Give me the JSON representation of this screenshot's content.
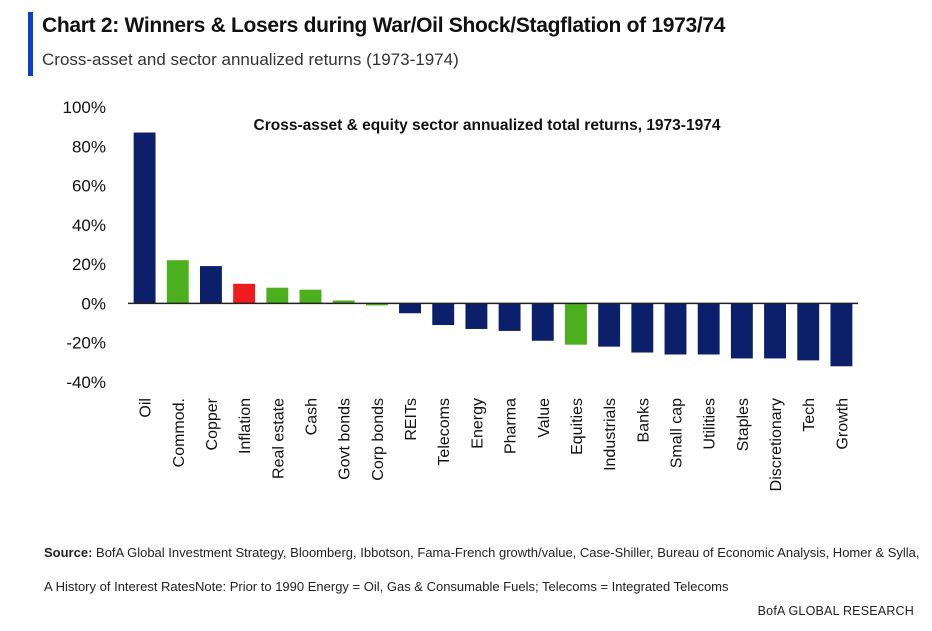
{
  "header": {
    "title": "Chart 2: Winners & Losers during War/Oil Shock/Stagflation of 1973/74",
    "subtitle": "Cross-asset and sector annualized returns (1973-1974)"
  },
  "chart_data": {
    "type": "bar",
    "title": "Cross-asset & equity sector annualized total returns, 1973-1974",
    "xlabel": "",
    "ylabel": "",
    "ylim": [
      -40,
      100
    ],
    "yticks": [
      "100%",
      "80%",
      "60%",
      "40%",
      "20%",
      "0%",
      "-20%",
      "-40%"
    ],
    "ytick_values": [
      100,
      80,
      60,
      40,
      20,
      0,
      -20,
      -40
    ],
    "grid": false,
    "categories": [
      "Oil",
      "Commod.",
      "Copper",
      "Inflation",
      "Real estate",
      "Cash",
      "Govt bonds",
      "Corp bonds",
      "REITs",
      "Telecoms",
      "Energy",
      "Pharma",
      "Value",
      "Equities",
      "Industrials",
      "Banks",
      "Small cap",
      "Utilities",
      "Staples",
      "Discretionary",
      "Tech",
      "Growth"
    ],
    "values": [
      87,
      22,
      19,
      10,
      8,
      7,
      1.5,
      -1,
      -5,
      -11,
      -13,
      -14,
      -19,
      -21,
      -22,
      -25,
      -26,
      -26,
      -28,
      -28,
      -29,
      -32
    ],
    "bar_colors": [
      "#0b1f6b",
      "#4caf1e",
      "#0b1f6b",
      "#ee1c1c",
      "#4caf1e",
      "#4caf1e",
      "#4caf1e",
      "#4caf1e",
      "#0b1f6b",
      "#0b1f6b",
      "#0b1f6b",
      "#0b1f6b",
      "#0b1f6b",
      "#4caf1e",
      "#0b1f6b",
      "#0b1f6b",
      "#0b1f6b",
      "#0b1f6b",
      "#0b1f6b",
      "#0b1f6b",
      "#0b1f6b",
      "#0b1f6b"
    ]
  },
  "footer": {
    "source_label": "Source:",
    "source_text": " BofA Global Investment Strategy, Bloomberg, Ibbotson, Fama-French growth/value, Case-Shiller, Bureau of Economic Analysis, Homer & Sylla, A History of Interest RatesNote: Prior to 1990 Energy = Oil, Gas & Consumable Fuels; Telecoms = Integrated Telecoms",
    "brand": "BofA GLOBAL RESEARCH"
  },
  "colors": {
    "accent": "#0a3fc7",
    "navy": "#0b1f6b",
    "green": "#4caf1e",
    "red": "#ee1c1c"
  }
}
